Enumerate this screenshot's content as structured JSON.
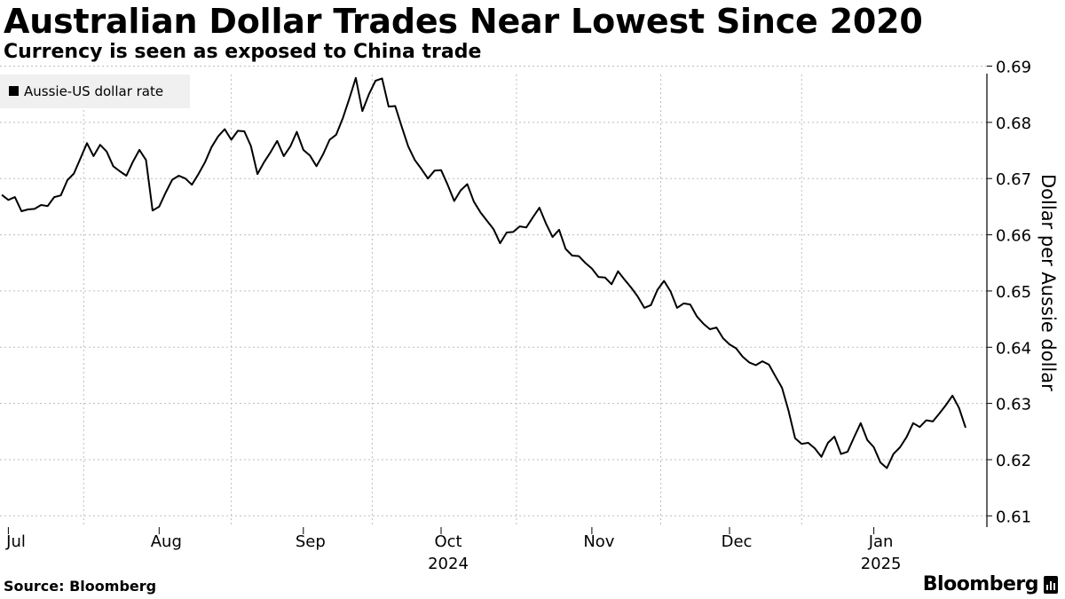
{
  "title": "Australian Dollar Trades Near Lowest Since 2020",
  "subtitle": "Currency is seen as exposed to China trade",
  "source": "Source: Bloomberg",
  "brand": "Bloomberg",
  "colors": {
    "line": "#000000",
    "grid": "#bdbdbd",
    "legend_bg": "#f0f0f0",
    "axis": "#000000"
  },
  "chart_data": {
    "type": "line",
    "title": "Australian Dollar Trades Near Lowest Since 2020",
    "ylabel": "Dollar per Aussie dollar",
    "xlabel": "",
    "legend": [
      "Aussie-US dollar rate"
    ],
    "ylim": [
      0.608,
      0.6885
    ],
    "yticks": [
      0.61,
      0.62,
      0.63,
      0.64,
      0.65,
      0.66,
      0.67,
      0.68,
      0.69
    ],
    "ytick_labels": [
      "0.61",
      "0.62",
      "0.63",
      "0.64",
      "0.65",
      "0.66",
      "0.67",
      "0.68",
      "0.69"
    ],
    "x_start": "2024-06-28",
    "x_end": "2025-01-17",
    "month_ticks": [
      {
        "label": "Jul",
        "year": "",
        "index": 1
      },
      {
        "label": "Aug",
        "year": "",
        "index": 24
      },
      {
        "label": "Sep",
        "year": "",
        "index": 46
      },
      {
        "label": "Oct",
        "year": "2024",
        "index": 67
      },
      {
        "label": "Nov",
        "year": "",
        "index": 90
      },
      {
        "label": "Dec",
        "year": "",
        "index": 111
      },
      {
        "label": "Jan",
        "year": "2025",
        "index": 133
      }
    ],
    "series": [
      {
        "name": "Aussie-US dollar rate",
        "values": [
          0.6671,
          0.6662,
          0.6667,
          0.6642,
          0.6645,
          0.6646,
          0.6653,
          0.6651,
          0.6667,
          0.667,
          0.6697,
          0.6709,
          0.6736,
          0.6763,
          0.674,
          0.676,
          0.6748,
          0.6722,
          0.6713,
          0.6705,
          0.673,
          0.6751,
          0.6733,
          0.6643,
          0.665,
          0.6675,
          0.6698,
          0.6705,
          0.67,
          0.6689,
          0.6708,
          0.6729,
          0.6756,
          0.6775,
          0.6788,
          0.6769,
          0.6785,
          0.6784,
          0.6758,
          0.6708,
          0.6729,
          0.6747,
          0.6767,
          0.674,
          0.6757,
          0.6783,
          0.6751,
          0.6741,
          0.6722,
          0.6743,
          0.6769,
          0.6778,
          0.6807,
          0.6842,
          0.6879,
          0.682,
          0.685,
          0.6874,
          0.6878,
          0.6828,
          0.6829,
          0.6792,
          0.6757,
          0.6733,
          0.6717,
          0.67,
          0.6714,
          0.6715,
          0.6689,
          0.666,
          0.6679,
          0.669,
          0.6659,
          0.664,
          0.6625,
          0.661,
          0.6585,
          0.6604,
          0.6605,
          0.6615,
          0.6613,
          0.6631,
          0.6648,
          0.662,
          0.6596,
          0.6609,
          0.6575,
          0.6563,
          0.6562,
          0.655,
          0.654,
          0.6525,
          0.6524,
          0.6512,
          0.6535,
          0.652,
          0.6506,
          0.649,
          0.647,
          0.6475,
          0.6502,
          0.6518,
          0.6499,
          0.647,
          0.6478,
          0.6476,
          0.6455,
          0.6442,
          0.6432,
          0.6435,
          0.6416,
          0.6405,
          0.6398,
          0.6383,
          0.6373,
          0.6368,
          0.6375,
          0.6369,
          0.6348,
          0.6328,
          0.6287,
          0.6238,
          0.6228,
          0.623,
          0.622,
          0.6205,
          0.623,
          0.6241,
          0.621,
          0.6214,
          0.624,
          0.6265,
          0.6235,
          0.6222,
          0.6195,
          0.6185,
          0.621,
          0.6222,
          0.624,
          0.6265,
          0.6258,
          0.627,
          0.6268,
          0.6282,
          0.6297,
          0.6314,
          0.6292,
          0.6257
        ]
      }
    ]
  }
}
